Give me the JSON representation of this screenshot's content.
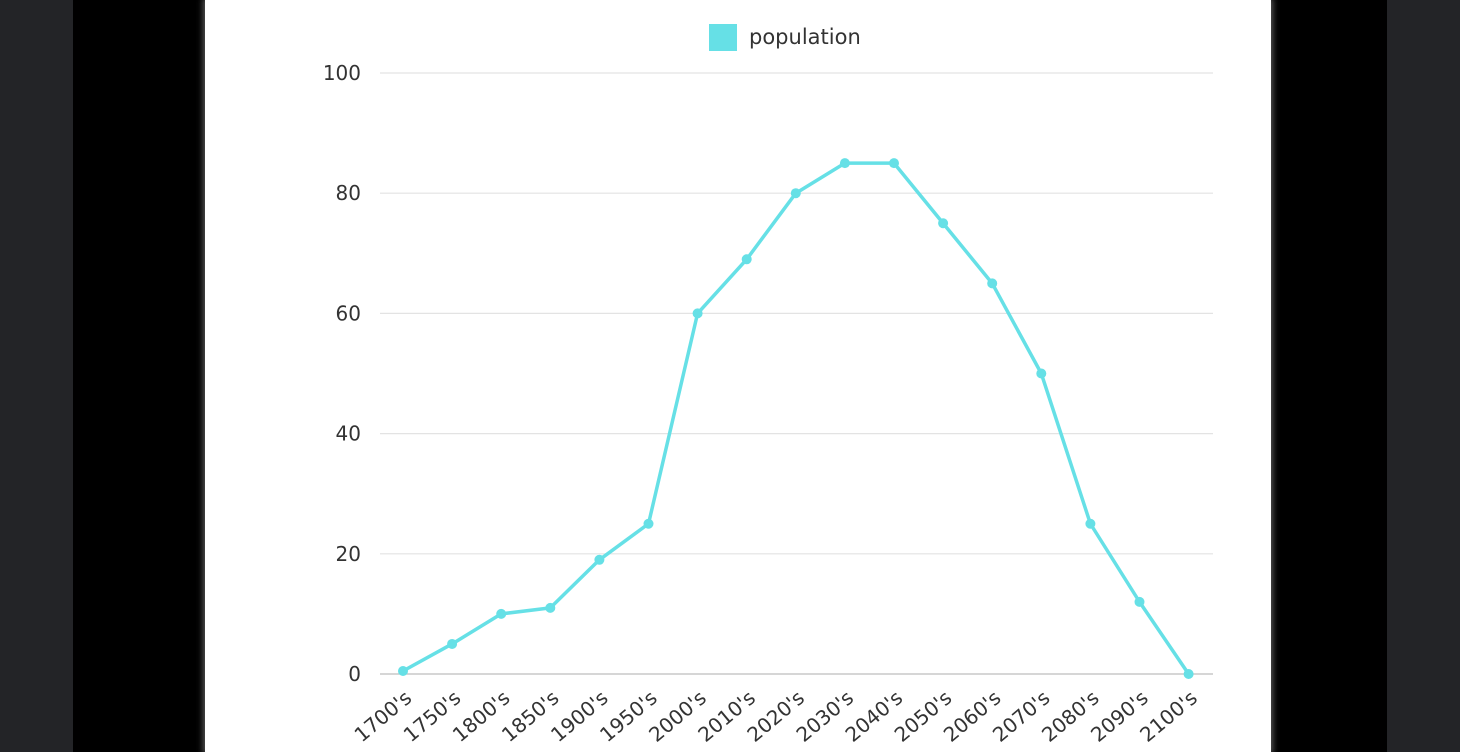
{
  "colors": {
    "series": "#66e0e6",
    "grid": "#e3e3e3",
    "axis_text": "#333333"
  },
  "chart_data": {
    "type": "line",
    "legend": {
      "position": "top-center",
      "entries": [
        "population"
      ]
    },
    "categories": [
      "1700's",
      "1750's",
      "1800's",
      "1850's",
      "1900's",
      "1950's",
      "2000's",
      "2010's",
      "2020's",
      "2030's",
      "2040's",
      "2050's",
      "2060's",
      "2070's",
      "2080's",
      "2090's",
      "2100's"
    ],
    "series": [
      {
        "name": "population",
        "values": [
          0.5,
          5,
          10,
          11,
          19,
          25,
          60,
          69,
          80,
          85,
          85,
          75,
          65,
          50,
          25,
          12,
          0
        ]
      }
    ],
    "ylim": [
      0,
      100
    ],
    "yticks": [
      0,
      20,
      40,
      60,
      80,
      100
    ],
    "grid": true,
    "xlabel": "",
    "ylabel": "",
    "title": ""
  }
}
